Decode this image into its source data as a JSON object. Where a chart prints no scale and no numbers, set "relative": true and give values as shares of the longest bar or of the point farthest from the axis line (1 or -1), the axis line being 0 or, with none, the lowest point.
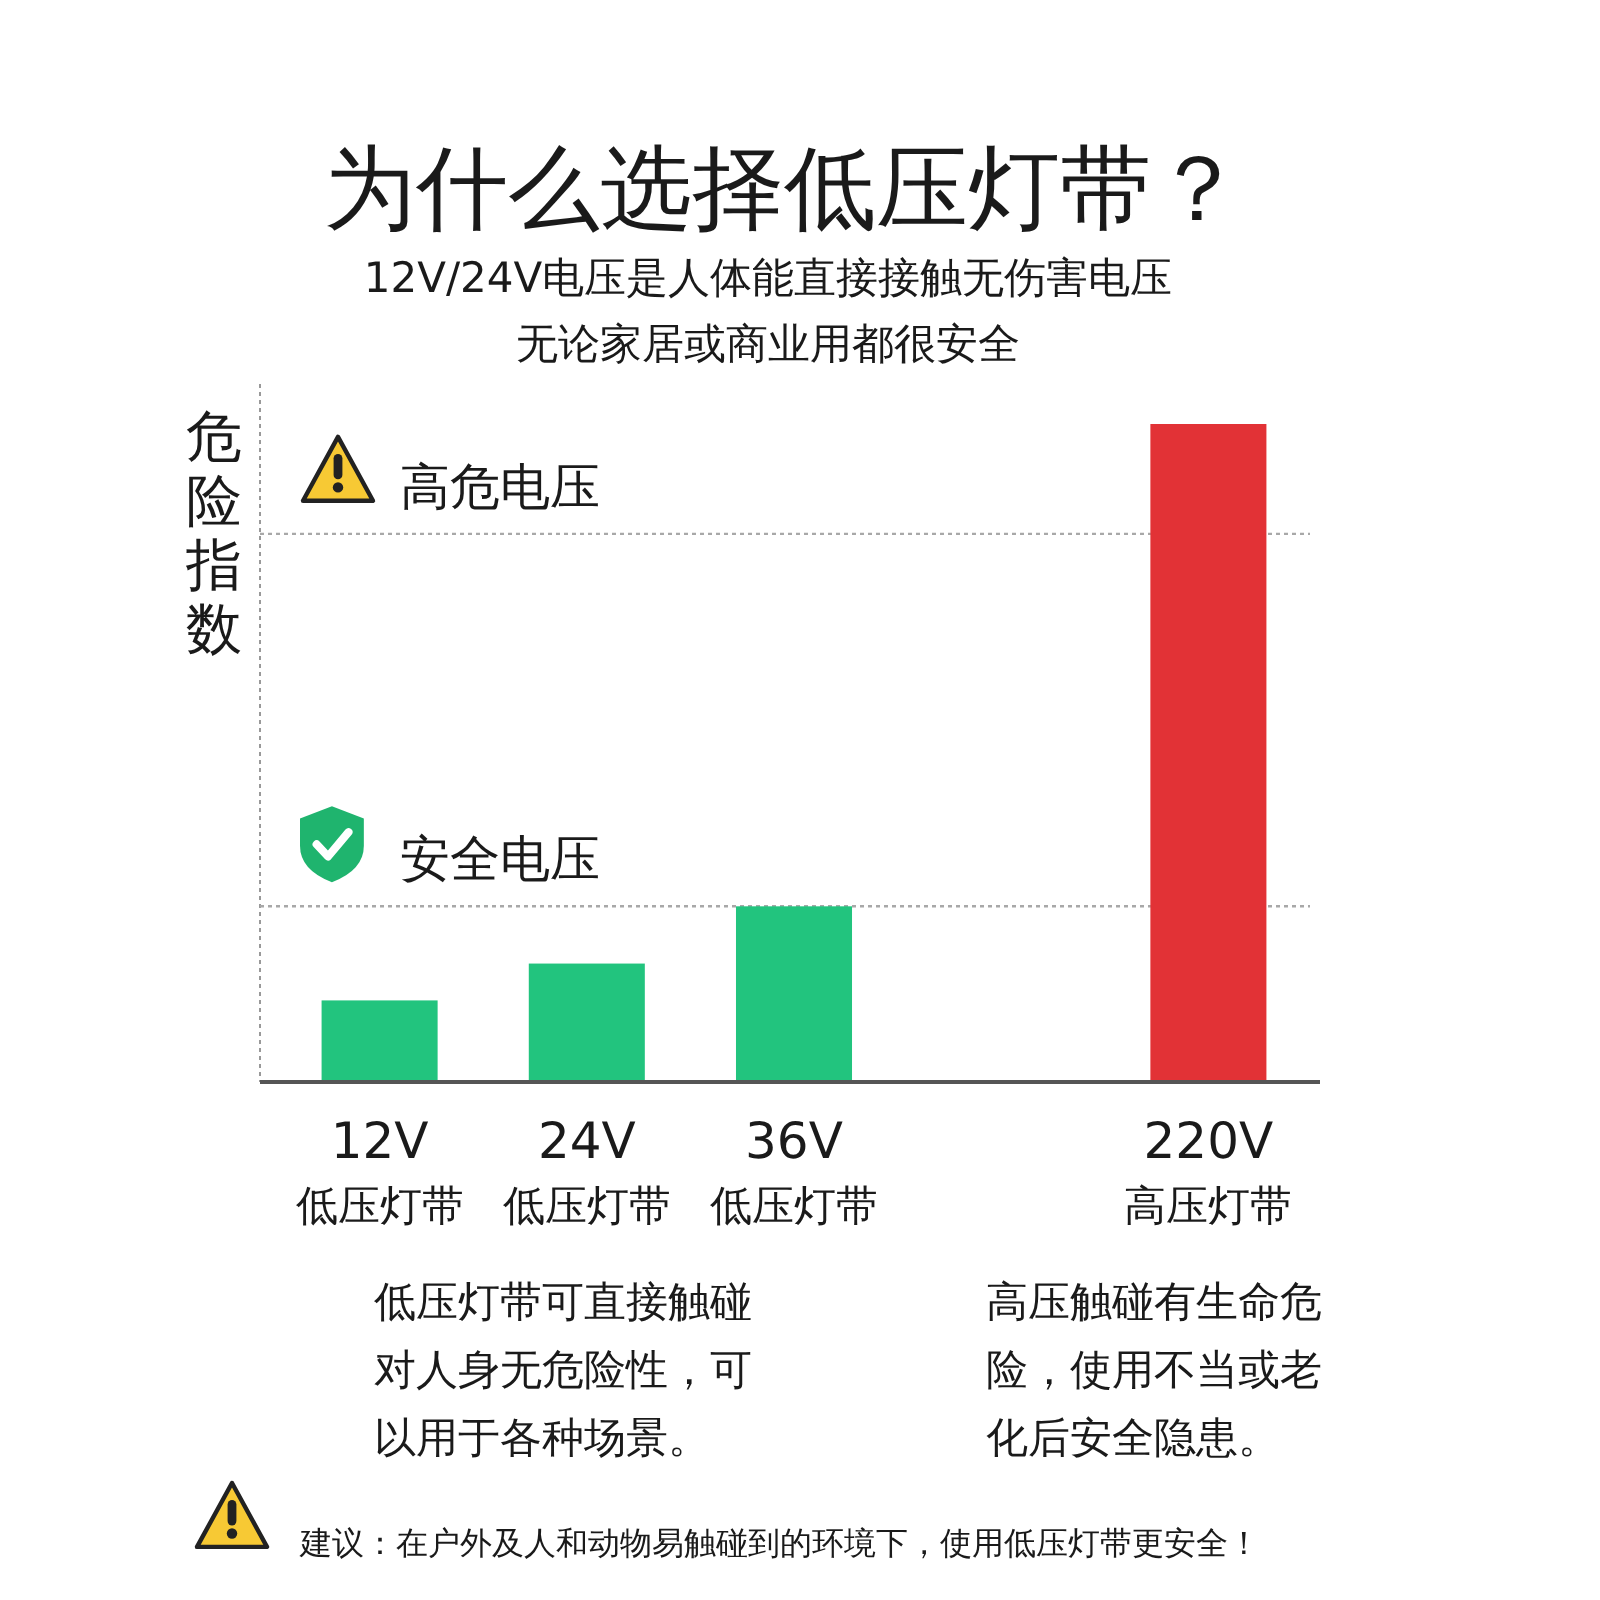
{
  "chart_data": {
    "type": "bar",
    "title": "为什么选择低压灯带？",
    "subtitle": "12V/24V电压是人体能直接接触无伤害电压无论家居或商业用都很安全",
    "ylabel": "危险指数",
    "categories": [
      "12V\n低压灯带",
      "24V\n低压灯带",
      "36V\n低压灯带",
      null,
      "220V\n高压灯带"
    ],
    "values": [
      0.124,
      0.18,
      0.267,
      null,
      1
    ],
    "colors": [
      "#22c47e",
      "#22c47e",
      "#22c47e",
      null,
      "#e23236"
    ],
    "relative": true,
    "ref_lines": [
      {
        "axis": "y",
        "value": 0.833,
        "label": "高危电压",
        "color": "#a8a8a8",
        "line_style": "dotted"
      },
      {
        "axis": "y",
        "value": 0.267,
        "label": "安全电压",
        "color": "#a8a8a8",
        "line_style": "dotted"
      }
    ],
    "annotations": [
      "低压灯带可直接触碰对人身无危险性，可以用于各种场景。",
      "高压触碰有生命危险，使用不当或老化后安全隐患。",
      "建议：在户外及人和动物易触碰到的环境下，使用低压灯带更安全！"
    ]
  }
}
